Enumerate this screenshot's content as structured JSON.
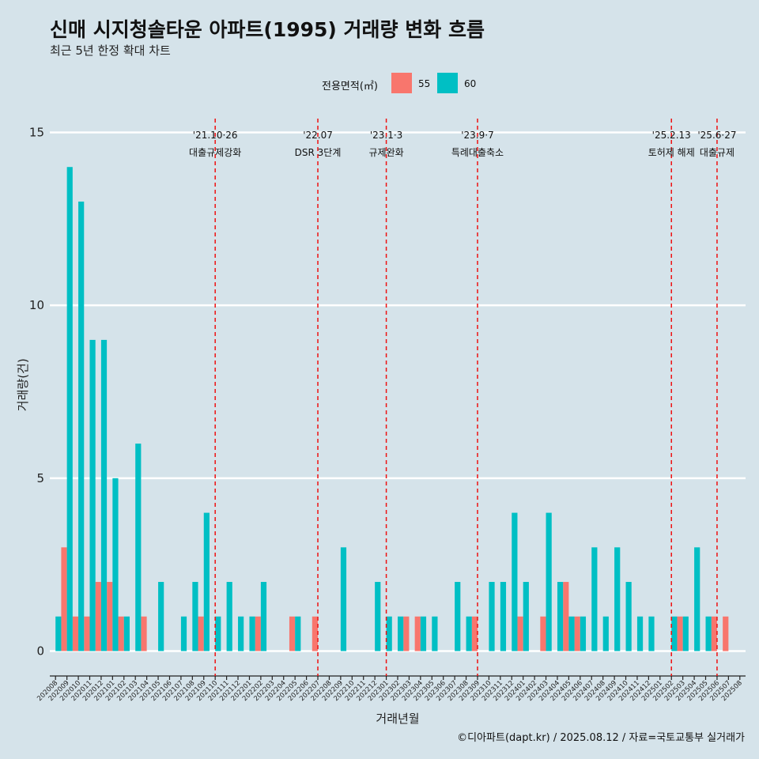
{
  "title": "신매 시지청솔타운 아파트(1995) 거래량 변화 흐름",
  "subtitle": "최근 5년 한정 확대 차트",
  "caption": "©디아파트(dapt.kr) / 2025.08.12 / 자료=국토교통부 실거래가",
  "legend": {
    "title": "전용면적(㎡)",
    "items": [
      {
        "label": "55",
        "color": "#f8766d"
      },
      {
        "label": "60",
        "color": "#00bfc4"
      }
    ]
  },
  "chart_data": {
    "type": "bar",
    "title": "신매 시지청솔타운 아파트(1995) 거래량 변화 흐름",
    "subtitle": "최근 5년 한정 확대 차트",
    "xlabel": "거래년월",
    "ylabel": "거래량(건)",
    "ylim": [
      -0.6,
      15.3
    ],
    "yticks": [
      0,
      5,
      10,
      15
    ],
    "grid": true,
    "legend_position": "top",
    "categories": [
      "202008",
      "202009",
      "202010",
      "202011",
      "202012",
      "202101",
      "202102",
      "202103",
      "202104",
      "202105",
      "202106",
      "202107",
      "202108",
      "202109",
      "202110",
      "202111",
      "202112",
      "202201",
      "202202",
      "202203",
      "202204",
      "202205",
      "202206",
      "202207",
      "202208",
      "202209",
      "202210",
      "202211",
      "202212",
      "202301",
      "202302",
      "202303",
      "202304",
      "202305",
      "202306",
      "202307",
      "202308",
      "202309",
      "202310",
      "202311",
      "202312",
      "202401",
      "202402",
      "202403",
      "202404",
      "202405",
      "202406",
      "202407",
      "202408",
      "202409",
      "202410",
      "202411",
      "202412",
      "202501",
      "202502",
      "202503",
      "202504",
      "202505",
      "202506",
      "202507",
      "202508"
    ],
    "series": [
      {
        "name": "55",
        "color": "#f8766d",
        "values": [
          0,
          3,
          1,
          1,
          2,
          2,
          1,
          0,
          1,
          0,
          0,
          0,
          0,
          1,
          0,
          0,
          0,
          0,
          1,
          0,
          0,
          1,
          0,
          1,
          0,
          0,
          0,
          0,
          0,
          0,
          0,
          1,
          1,
          0,
          0,
          0,
          0,
          1,
          0,
          0,
          0,
          1,
          0,
          1,
          0,
          2,
          1,
          0,
          0,
          0,
          0,
          0,
          0,
          0,
          0,
          1,
          0,
          0,
          1,
          1,
          0
        ]
      },
      {
        "name": "60",
        "color": "#00bfc4",
        "values": [
          1,
          14,
          13,
          9,
          9,
          5,
          1,
          6,
          0,
          2,
          0,
          1,
          2,
          4,
          1,
          2,
          1,
          1,
          2,
          0,
          0,
          1,
          0,
          0,
          0,
          3,
          0,
          0,
          2,
          1,
          1,
          0,
          1,
          1,
          0,
          2,
          1,
          0,
          2,
          2,
          4,
          2,
          0,
          4,
          2,
          1,
          1,
          3,
          1,
          3,
          2,
          1,
          1,
          0,
          1,
          1,
          3,
          1,
          0,
          0,
          0
        ]
      }
    ],
    "annotations": [
      {
        "x": "202110",
        "date": "'21.10·26",
        "label": "대출규제강화"
      },
      {
        "x": "202207",
        "date": "'22.07",
        "label": "DSR 3단계"
      },
      {
        "x": "202301",
        "date": "'23.1·3",
        "label": "규제완화"
      },
      {
        "x": "202309",
        "date": "'23.9·7",
        "label": "특례대출축소"
      },
      {
        "x": "202502",
        "date": "'25.2.13",
        "label": "토허제 해제"
      },
      {
        "x": "202506",
        "date": "'25.6·27",
        "label": "대출규제"
      }
    ]
  }
}
